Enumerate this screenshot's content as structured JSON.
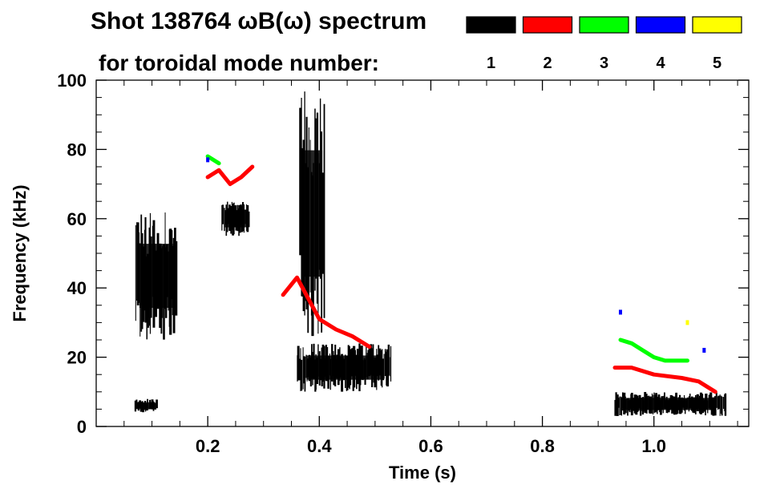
{
  "chart_data": {
    "type": "heatmap",
    "title": "Shot 138764 ωB(ω) spectrum",
    "subtitle": "for toroidal mode number:",
    "xlabel": "Time (s)",
    "ylabel": "Frequency (kHz)",
    "xlim": [
      0.0,
      1.17
    ],
    "ylim": [
      0,
      100
    ],
    "x_ticks": [
      0.2,
      0.4,
      0.6,
      0.8,
      1.0
    ],
    "x_tick_labels": [
      "0.2",
      "0.4",
      "0.6",
      "0.8",
      "1.0"
    ],
    "y_ticks": [
      0,
      20,
      40,
      60,
      80,
      100
    ],
    "y_tick_labels": [
      "0",
      "20",
      "40",
      "60",
      "80",
      "100"
    ],
    "grid": false,
    "legend_position": "top-right",
    "legend": [
      {
        "mode": "1",
        "color": "#000000"
      },
      {
        "mode": "2",
        "color": "#ff0000"
      },
      {
        "mode": "3",
        "color": "#00ff00"
      },
      {
        "mode": "4",
        "color": "#0000ff"
      },
      {
        "mode": "5",
        "color": "#ffff00"
      }
    ],
    "series": [
      {
        "mode": "1",
        "color": "#000000",
        "bands": [
          {
            "t": [
              0.07,
              0.145
            ],
            "f": [
              25,
              62
            ]
          },
          {
            "t": [
              0.07,
              0.11
            ],
            "f": [
              4,
              8
            ]
          },
          {
            "t": [
              0.225,
              0.275
            ],
            "f": [
              55,
              65
            ]
          },
          {
            "t": [
              0.36,
              0.53
            ],
            "f": [
              10,
              24
            ]
          },
          {
            "t": [
              0.365,
              0.41
            ],
            "f": [
              25,
              98
            ]
          },
          {
            "t": [
              0.93,
              1.13
            ],
            "f": [
              3,
              10
            ]
          }
        ]
      },
      {
        "mode": "2",
        "color": "#ff0000",
        "curves": [
          {
            "t": [
              0.2,
              0.22,
              0.24,
              0.26,
              0.28
            ],
            "f": [
              72,
              74,
              70,
              72,
              75
            ]
          },
          {
            "t": [
              0.335,
              0.36,
              0.38,
              0.4,
              0.43,
              0.46,
              0.49
            ],
            "f": [
              38,
              43,
              37,
              31,
              28,
              26,
              23
            ]
          },
          {
            "t": [
              0.93,
              0.96,
              1.0,
              1.05,
              1.08,
              1.11
            ],
            "f": [
              17,
              17,
              15,
              14,
              13,
              10
            ]
          }
        ]
      },
      {
        "mode": "3",
        "color": "#00ff00",
        "curves": [
          {
            "t": [
              0.2,
              0.21,
              0.22
            ],
            "f": [
              78,
              77,
              76
            ]
          },
          {
            "t": [
              0.94,
              0.96,
              0.98,
              1.0,
              1.02,
              1.06
            ],
            "f": [
              25,
              24,
              22,
              20,
              19,
              19
            ]
          }
        ]
      },
      {
        "mode": "4",
        "color": "#0000ff",
        "points": [
          {
            "t": 0.2,
            "f": 77
          },
          {
            "t": 0.94,
            "f": 33
          },
          {
            "t": 1.09,
            "f": 22
          }
        ]
      },
      {
        "mode": "5",
        "color": "#ffff00",
        "points": [
          {
            "t": 1.06,
            "f": 30
          }
        ]
      }
    ]
  }
}
